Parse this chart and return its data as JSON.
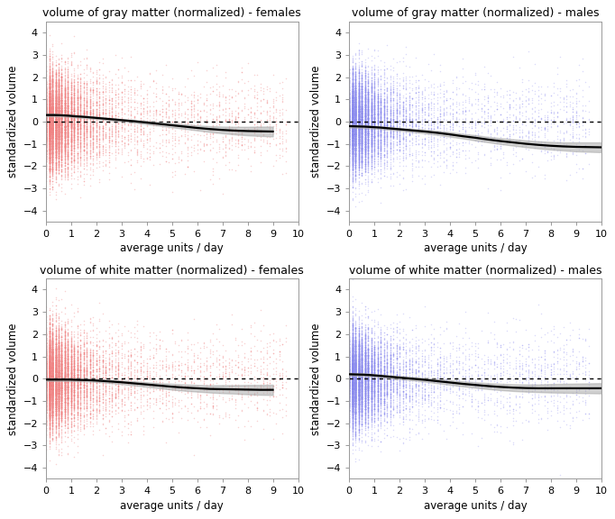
{
  "panels": [
    {
      "title": "volume of gray matter (normalized) - females",
      "dot_color": "#f08080",
      "dot_alpha": 0.35,
      "curve_x": [
        0.0,
        0.3,
        0.6,
        0.9,
        1.2,
        1.5,
        1.8,
        2.1,
        2.5,
        3.0,
        3.5,
        4.0,
        4.5,
        5.0,
        5.5,
        6.0,
        6.5,
        7.0,
        7.5,
        8.0,
        8.5,
        9.0
      ],
      "curve_y": [
        0.3,
        0.3,
        0.29,
        0.27,
        0.24,
        0.22,
        0.19,
        0.16,
        0.12,
        0.07,
        0.02,
        -0.04,
        -0.1,
        -0.16,
        -0.22,
        -0.28,
        -0.33,
        -0.37,
        -0.4,
        -0.42,
        -0.43,
        -0.44
      ],
      "ci_lower": [
        0.24,
        0.24,
        0.24,
        0.22,
        0.19,
        0.17,
        0.14,
        0.11,
        0.07,
        0.02,
        -0.04,
        -0.11,
        -0.18,
        -0.25,
        -0.32,
        -0.39,
        -0.46,
        -0.52,
        -0.57,
        -0.61,
        -0.64,
        -0.66
      ],
      "ci_upper": [
        0.36,
        0.36,
        0.34,
        0.32,
        0.29,
        0.27,
        0.24,
        0.21,
        0.17,
        0.12,
        0.08,
        0.03,
        -0.02,
        -0.07,
        -0.12,
        -0.17,
        -0.2,
        -0.22,
        -0.23,
        -0.23,
        -0.22,
        -0.22
      ],
      "ylabel": "standardized volume",
      "xlabel": "average units / day",
      "ylim": [
        -4.5,
        4.5
      ],
      "xlim": [
        0,
        10
      ],
      "n_females_scale": 1.0
    },
    {
      "title": "volume of gray matter (normalized) - males",
      "dot_color": "#8888ee",
      "dot_alpha": 0.3,
      "curve_x": [
        0.0,
        0.3,
        0.6,
        0.9,
        1.2,
        1.5,
        1.8,
        2.1,
        2.5,
        3.0,
        3.5,
        4.0,
        4.5,
        5.0,
        5.5,
        6.0,
        6.5,
        7.0,
        7.5,
        8.0,
        8.5,
        9.0,
        9.5,
        10.0
      ],
      "curve_y": [
        -0.2,
        -0.21,
        -0.22,
        -0.24,
        -0.26,
        -0.29,
        -0.32,
        -0.35,
        -0.39,
        -0.44,
        -0.5,
        -0.57,
        -0.65,
        -0.72,
        -0.8,
        -0.87,
        -0.93,
        -0.99,
        -1.04,
        -1.08,
        -1.11,
        -1.13,
        -1.14,
        -1.15
      ],
      "ci_lower": [
        -0.26,
        -0.27,
        -0.28,
        -0.3,
        -0.32,
        -0.35,
        -0.38,
        -0.41,
        -0.46,
        -0.52,
        -0.59,
        -0.67,
        -0.75,
        -0.84,
        -0.92,
        -1.0,
        -1.07,
        -1.14,
        -1.2,
        -1.25,
        -1.29,
        -1.33,
        -1.35,
        -1.37
      ],
      "ci_upper": [
        -0.14,
        -0.15,
        -0.16,
        -0.18,
        -0.2,
        -0.23,
        -0.26,
        -0.29,
        -0.32,
        -0.36,
        -0.41,
        -0.47,
        -0.55,
        -0.6,
        -0.68,
        -0.74,
        -0.79,
        -0.84,
        -0.88,
        -0.91,
        -0.93,
        -0.93,
        -0.93,
        -0.93
      ],
      "ylabel": "standardized volume",
      "xlabel": "average units / day",
      "ylim": [
        -4.5,
        4.5
      ],
      "xlim": [
        0,
        10
      ],
      "n_females_scale": 1.2
    },
    {
      "title": "volume of white matter (normalized) - females",
      "dot_color": "#f08080",
      "dot_alpha": 0.35,
      "curve_x": [
        0.0,
        0.3,
        0.6,
        0.9,
        1.2,
        1.5,
        1.8,
        2.1,
        2.5,
        3.0,
        3.5,
        4.0,
        4.5,
        5.0,
        5.5,
        6.0,
        6.5,
        7.0,
        7.5,
        8.0,
        8.5,
        9.0
      ],
      "curve_y": [
        -0.04,
        -0.04,
        -0.04,
        -0.04,
        -0.05,
        -0.06,
        -0.07,
        -0.09,
        -0.12,
        -0.16,
        -0.21,
        -0.26,
        -0.31,
        -0.36,
        -0.4,
        -0.43,
        -0.46,
        -0.47,
        -0.48,
        -0.49,
        -0.5,
        -0.5
      ],
      "ci_lower": [
        -0.1,
        -0.1,
        -0.1,
        -0.1,
        -0.11,
        -0.12,
        -0.13,
        -0.15,
        -0.19,
        -0.24,
        -0.3,
        -0.36,
        -0.42,
        -0.49,
        -0.54,
        -0.58,
        -0.62,
        -0.65,
        -0.67,
        -0.7,
        -0.72,
        -0.73
      ],
      "ci_upper": [
        0.02,
        0.02,
        0.02,
        0.02,
        0.01,
        0.0,
        -0.01,
        -0.03,
        -0.05,
        -0.08,
        -0.12,
        -0.16,
        -0.2,
        -0.23,
        -0.26,
        -0.28,
        -0.3,
        -0.29,
        -0.29,
        -0.28,
        -0.28,
        -0.27
      ],
      "ylabel": "standardized volume",
      "xlabel": "average units / day",
      "ylim": [
        -4.5,
        4.5
      ],
      "xlim": [
        0,
        10
      ],
      "n_females_scale": 1.0
    },
    {
      "title": "volume of white matter (normalized) - males",
      "dot_color": "#8888ee",
      "dot_alpha": 0.3,
      "curve_x": [
        0.0,
        0.3,
        0.6,
        0.9,
        1.2,
        1.5,
        1.8,
        2.1,
        2.5,
        3.0,
        3.5,
        4.0,
        4.5,
        5.0,
        5.5,
        6.0,
        6.5,
        7.0,
        7.5,
        8.0,
        8.5,
        9.0,
        9.5,
        10.0
      ],
      "curve_y": [
        0.2,
        0.19,
        0.18,
        0.16,
        0.13,
        0.1,
        0.07,
        0.04,
        0.0,
        -0.05,
        -0.11,
        -0.17,
        -0.23,
        -0.28,
        -0.33,
        -0.37,
        -0.4,
        -0.42,
        -0.43,
        -0.43,
        -0.43,
        -0.43,
        -0.43,
        -0.43
      ],
      "ci_lower": [
        0.14,
        0.13,
        0.12,
        0.1,
        0.07,
        0.04,
        0.01,
        -0.03,
        -0.07,
        -0.13,
        -0.2,
        -0.27,
        -0.34,
        -0.4,
        -0.46,
        -0.51,
        -0.55,
        -0.58,
        -0.6,
        -0.62,
        -0.63,
        -0.64,
        -0.65,
        -0.66
      ],
      "ci_upper": [
        0.26,
        0.25,
        0.24,
        0.22,
        0.19,
        0.16,
        0.13,
        0.11,
        0.07,
        0.03,
        -0.02,
        -0.07,
        -0.12,
        -0.16,
        -0.2,
        -0.23,
        -0.25,
        -0.26,
        -0.26,
        -0.24,
        -0.23,
        -0.22,
        -0.21,
        -0.2
      ],
      "ylabel": "standardized volume",
      "xlabel": "average units / day",
      "ylim": [
        -4.5,
        4.5
      ],
      "xlim": [
        0,
        10
      ],
      "n_females_scale": 1.2
    }
  ],
  "fig_bg": "#ffffff",
  "title_fontsize": 9.0,
  "label_fontsize": 8.5,
  "tick_fontsize": 8.0,
  "dot_size": 1.2,
  "curve_color": "#000000",
  "curve_lw": 1.6,
  "ci_color": "#aaaaaa",
  "ci_alpha": 0.55,
  "dotted_lw": 1.0,
  "xticks": [
    0,
    1,
    2,
    3,
    4,
    5,
    6,
    7,
    8,
    9,
    10
  ],
  "yticks": [
    -4,
    -3,
    -2,
    -1,
    0,
    1,
    2,
    3,
    4
  ]
}
